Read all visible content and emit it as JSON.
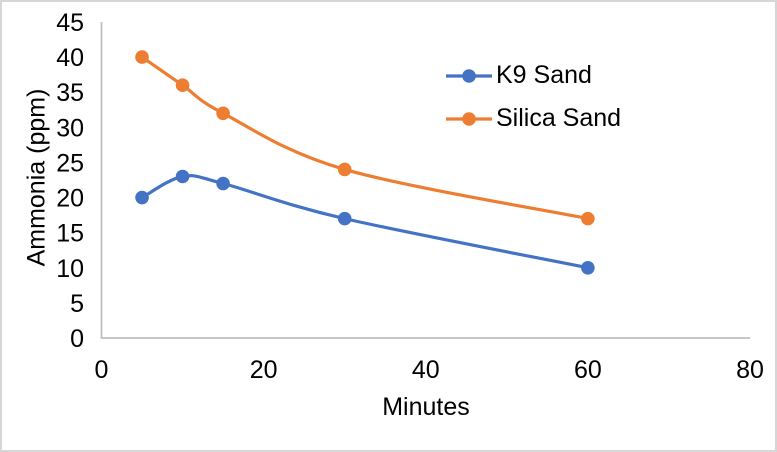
{
  "chart_data": {
    "type": "line",
    "xlabel": "Minutes",
    "ylabel": "Ammonia (ppm)",
    "x": [
      5,
      10,
      15,
      30,
      60
    ],
    "series": [
      {
        "name": "K9 Sand",
        "color": "#4472C4",
        "values": [
          20,
          23,
          22,
          17,
          10
        ]
      },
      {
        "name": "Silica Sand",
        "color": "#ED7D31",
        "values": [
          40,
          36,
          32,
          24,
          17
        ]
      }
    ],
    "xlim": [
      0,
      80
    ],
    "xticks": [
      0,
      20,
      40,
      60,
      80
    ],
    "ylim": [
      0,
      45
    ],
    "yticks": [
      0,
      5,
      10,
      15,
      20,
      25,
      30,
      35,
      40,
      45
    ],
    "grid": false,
    "line_smooth": true,
    "marker": "circle",
    "legend_position": "upper-right-inside",
    "axis_color": "#BFBFBF",
    "text_color": "#000000",
    "background_color": "#FFFFFF"
  }
}
